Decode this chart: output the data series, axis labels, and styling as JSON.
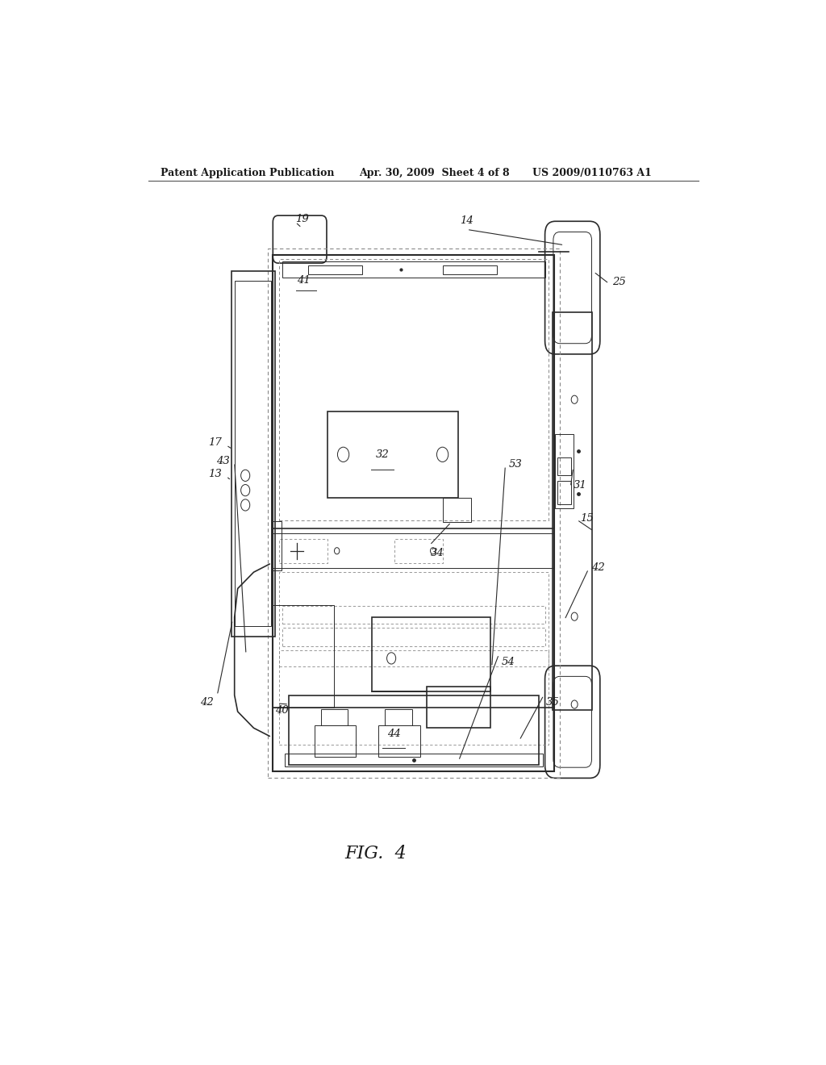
{
  "background_color": "#ffffff",
  "header_left": "Patent Application Publication",
  "header_mid": "Apr. 30, 2009  Sheet 4 of 8",
  "header_right": "US 2009/0110763 A1",
  "figure_label": "FIG.  4",
  "text_color": "#1a1a1a",
  "line_color": "#2a2a2a",
  "line_width": 1.2,
  "thin_line": 0.7,
  "dotted_line": 0.6
}
